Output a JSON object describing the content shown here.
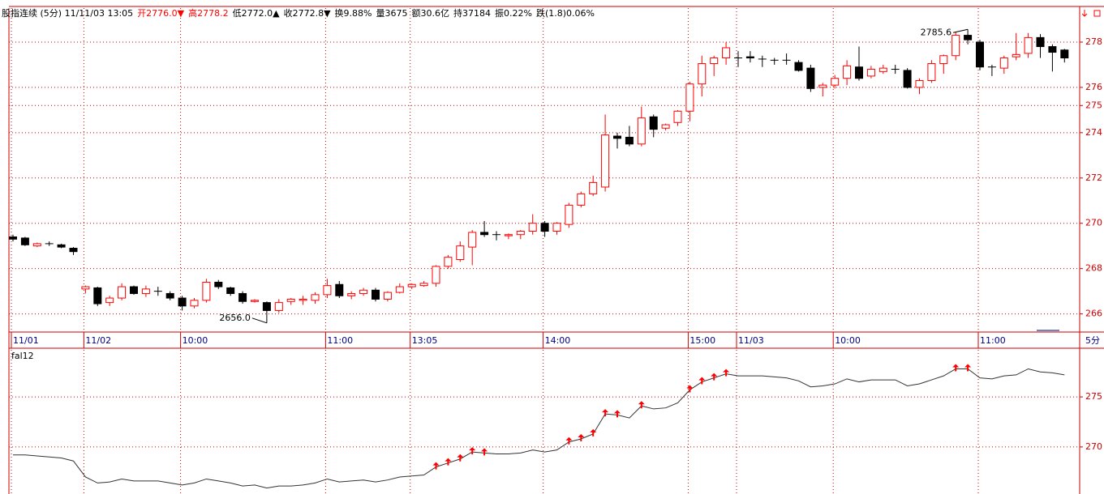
{
  "header": [
    {
      "text": "股指连续 (5分) 11/11/03 13:05",
      "color": "#000000"
    },
    {
      "text": "开2776.0▼",
      "color": "#ff0000"
    },
    {
      "text": "高2778.2",
      "color": "#ff0000"
    },
    {
      "text": "低2772.0▲",
      "color": "#000000"
    },
    {
      "text": "收2772.8▼",
      "color": "#000000"
    },
    {
      "text": "换9.88%",
      "color": "#000000"
    },
    {
      "text": "量3675",
      "color": "#000000"
    },
    {
      "text": "额30.6亿",
      "color": "#000000"
    },
    {
      "text": "持37184",
      "color": "#000000"
    },
    {
      "text": "振0.22%",
      "color": "#000000"
    },
    {
      "text": "跌(1.8)0.06%",
      "color": "#000000"
    }
  ],
  "chart_data": [
    {
      "type": "candlestick",
      "x_unit_label": "5分",
      "up_color": "#ff0000",
      "down_color": "#000000",
      "grid": true,
      "grid_color": "#cc0000",
      "low_label": "2656.0",
      "high_label": "2785.6",
      "categories": [
        "11/01",
        null,
        null,
        null,
        null,
        null,
        "11/02",
        null,
        null,
        null,
        null,
        null,
        null,
        null,
        "10:00",
        null,
        null,
        null,
        null,
        null,
        null,
        null,
        null,
        null,
        null,
        null,
        "11:00",
        null,
        null,
        null,
        null,
        null,
        null,
        "13:05",
        null,
        null,
        null,
        null,
        null,
        null,
        null,
        null,
        null,
        null,
        "14:00",
        null,
        null,
        null,
        null,
        null,
        null,
        null,
        null,
        null,
        null,
        null,
        "15:00",
        null,
        null,
        null,
        "11/03",
        null,
        null,
        null,
        null,
        null,
        null,
        null,
        "10:00",
        null,
        null,
        null,
        null,
        null,
        null,
        null,
        null,
        null,
        null,
        null,
        "11:00",
        null,
        null,
        null,
        null,
        null,
        null,
        null
      ],
      "open": [
        2694,
        2693.5,
        2690,
        2691,
        2690.5,
        2689,
        2671,
        2671.5,
        2665,
        2667,
        2672,
        2669,
        2670,
        2669,
        2667,
        2663.5,
        2666,
        2674,
        2671.5,
        2669,
        2665.5,
        2665,
        2661.5,
        2665.5,
        2666,
        2666,
        2668.5,
        2673,
        2668,
        2669,
        2670.5,
        2666.5,
        2669.5,
        2672,
        2672.5,
        2673.5,
        2681,
        2684,
        2689.5,
        2696,
        2695,
        2694.5,
        2695,
        2696.5,
        2700,
        2696.5,
        2699.5,
        2708,
        2713,
        2716,
        2738.5,
        2738,
        2735,
        2747,
        2742,
        2744.5,
        2749.5,
        2761.5,
        2770.5,
        2773,
        2773,
        2773.5,
        2772.5,
        2772,
        2772,
        2771,
        2768.5,
        2760,
        2761,
        2764,
        2769,
        2765,
        2767,
        2768,
        2767.5,
        2760,
        2763,
        2770.5,
        2774,
        2783,
        2780,
        2769,
        2768.5,
        2773.5,
        2775,
        2782,
        2778,
        2776.5
      ],
      "high": [
        2695,
        2694,
        2691.5,
        2692,
        2691,
        2689.5,
        2672.5,
        2672,
        2668,
        2673.5,
        2672.5,
        2672.5,
        2672,
        2670,
        2668,
        2667,
        2675.5,
        2675,
        2672,
        2670,
        2666.5,
        2665.5,
        2666.5,
        2667,
        2668,
        2669.5,
        2675.5,
        2674.5,
        2670,
        2671.5,
        2671.5,
        2670,
        2673.5,
        2673.5,
        2674.5,
        2681.5,
        2686,
        2692,
        2697,
        2701,
        2696.5,
        2695.5,
        2697,
        2704,
        2701,
        2700.5,
        2709,
        2714,
        2721,
        2748,
        2740,
        2743,
        2751.5,
        2748,
        2744,
        2750,
        2762.5,
        2774,
        2774,
        2780,
        2776,
        2776,
        2774,
        2773,
        2775,
        2772,
        2770,
        2762,
        2765.5,
        2772,
        2778,
        2769.5,
        2770,
        2770,
        2768.5,
        2764,
        2772,
        2774.5,
        2784.5,
        2785.6,
        2781,
        2770,
        2774,
        2784,
        2784,
        2783.5,
        2779,
        2777
      ],
      "low": [
        2692,
        2690,
        2689.5,
        2690,
        2689,
        2686,
        2669,
        2663.5,
        2663.5,
        2666,
        2668.5,
        2667.5,
        2668,
        2666,
        2661.5,
        2662.5,
        2665,
        2671,
        2668,
        2664.5,
        2665,
        2656,
        2660.5,
        2664,
        2664,
        2664.5,
        2667,
        2667,
        2666.5,
        2668,
        2665.5,
        2665.5,
        2669,
        2671,
        2672,
        2672,
        2680,
        2683,
        2681.5,
        2694,
        2692.5,
        2693,
        2693,
        2695,
        2694,
        2695,
        2698,
        2707,
        2712,
        2714,
        2733,
        2734,
        2734,
        2738,
        2741,
        2743,
        2745,
        2756,
        2765,
        2770,
        2769,
        2771,
        2769,
        2770,
        2770,
        2767,
        2758,
        2756,
        2759.5,
        2761,
        2763,
        2764,
        2766,
        2766,
        2759.5,
        2757,
        2762,
        2766,
        2772,
        2779,
        2767.5,
        2765,
        2766,
        2772,
        2773,
        2773,
        2767,
        2771
      ],
      "close": [
        2693,
        2690.5,
        2691,
        2691,
        2689.5,
        2687.5,
        2672,
        2664.5,
        2667,
        2672,
        2669,
        2671,
        2670,
        2667,
        2663.5,
        2666,
        2674,
        2672,
        2669,
        2665.5,
        2666,
        2661.5,
        2665,
        2666.5,
        2666.5,
        2668.5,
        2672.5,
        2668,
        2669,
        2670.5,
        2666.5,
        2669.5,
        2672,
        2673,
        2673.5,
        2681,
        2685,
        2690,
        2696,
        2695,
        2695,
        2695,
        2696.5,
        2700,
        2696.5,
        2700,
        2708,
        2713,
        2718,
        2739,
        2737.5,
        2735,
        2746.5,
        2741.5,
        2743.5,
        2749.5,
        2761.5,
        2770.5,
        2773,
        2777.5,
        2773,
        2773,
        2772.5,
        2772,
        2772,
        2767.5,
        2759.5,
        2761,
        2764,
        2769.5,
        2764,
        2768,
        2768.5,
        2768,
        2760,
        2763,
        2770.5,
        2774,
        2783,
        2781,
        2769,
        2769,
        2773,
        2774.5,
        2782,
        2778,
        2775.5,
        2773
      ],
      "ylim": [
        2652,
        2795
      ],
      "yticks": [
        {
          "value": 2780,
          "label": "278"
        },
        {
          "value": 2760,
          "label": "276"
        },
        {
          "value": 2752,
          "label": "275"
        },
        {
          "value": 2740,
          "label": "274"
        },
        {
          "value": 2720,
          "label": "272"
        },
        {
          "value": 2700,
          "label": "270"
        },
        {
          "value": 2680,
          "label": "268"
        },
        {
          "value": 2660,
          "label": "266"
        }
      ]
    },
    {
      "type": "line",
      "name": "fal12",
      "color": "#333333",
      "signal_color": "#ff0000",
      "grid": true,
      "values": [
        2692,
        2692,
        2691,
        2690,
        2689,
        2686,
        2670,
        2664,
        2665,
        2668,
        2666,
        2666,
        2666,
        2664,
        2662,
        2664,
        2668,
        2666,
        2664,
        2661,
        2662,
        2659,
        2661,
        2661,
        2662,
        2664,
        2668,
        2665,
        2666,
        2667,
        2665,
        2667,
        2670,
        2671,
        2672,
        2680,
        2684,
        2688,
        2695,
        2694,
        2693,
        2693,
        2694,
        2697,
        2695,
        2697,
        2705,
        2708,
        2713,
        2733,
        2732,
        2729,
        2741,
        2738,
        2739,
        2744,
        2757,
        2765,
        2769,
        2773,
        2771,
        2771,
        2771,
        2770,
        2769,
        2766,
        2760,
        2761,
        2763,
        2768,
        2765,
        2767,
        2767,
        2767,
        2761,
        2763,
        2767,
        2771,
        2778,
        2778,
        2769,
        2768,
        2771,
        2772,
        2778,
        2775,
        2774,
        2772
      ],
      "signals": [
        35,
        36,
        37,
        38,
        39,
        46,
        47,
        48,
        49,
        50,
        52,
        56,
        57,
        58,
        59,
        78,
        79
      ],
      "ylim": [
        2653,
        2797
      ],
      "yticks": [
        {
          "value": 2750,
          "label": "275"
        },
        {
          "value": 2700,
          "label": "270"
        }
      ]
    }
  ]
}
